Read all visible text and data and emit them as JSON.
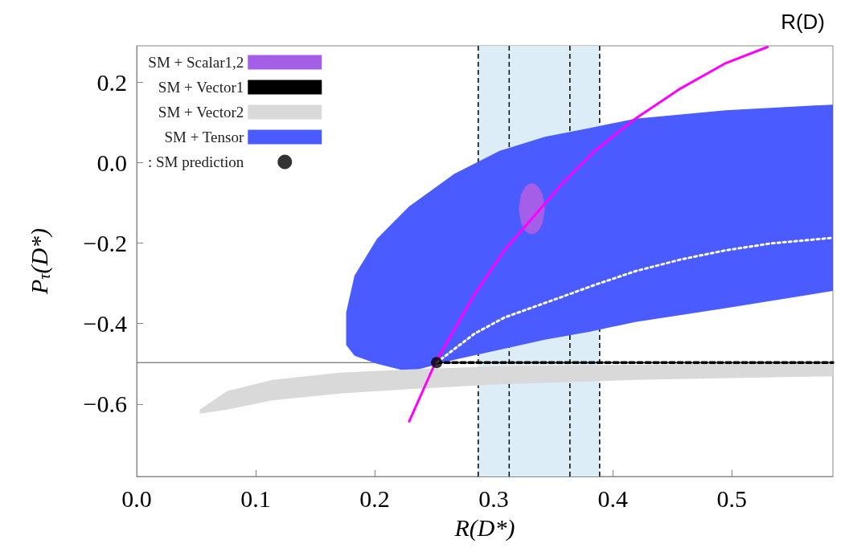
{
  "chart_data": {
    "type": "line",
    "xlabel": "R(D*)",
    "ylabel": "P$_{τ}$(D*)",
    "annotations": [
      "R(D)"
    ],
    "xlim": [
      0,
      0.585
    ],
    "ylim": [
      -0.78,
      0.29
    ],
    "xticks": [
      {
        "value": 0,
        "label": "0.0"
      },
      0.1,
      0.2,
      0.3,
      0.4,
      0.5
    ],
    "yticks": [
      {
        "value": -0.6,
        "label": "−0.6"
      },
      {
        "value": -0.4,
        "label": "−0.4"
      },
      {
        "value": -0.2,
        "label": "−0.2"
      },
      {
        "value": 0,
        "label": "0.0"
      },
      0.2
    ],
    "grid": false,
    "legend": "top left",
    "bands": [
      {
        "axis": "x",
        "from": 0.287,
        "to": 0.389,
        "color": "#dcedf8"
      }
    ],
    "ref_lines": [
      {
        "axis": "y",
        "value": -0.497,
        "color": "#555555",
        "line_style": "solid"
      },
      {
        "axis": "x",
        "value": 0.287,
        "color": "#000000",
        "line_style": "dashed"
      },
      {
        "axis": "x",
        "value": 0.313,
        "color": "#000000",
        "line_style": "dashed"
      },
      {
        "axis": "x",
        "value": 0.364,
        "color": "#000000",
        "line_style": "dashed"
      },
      {
        "axis": "x",
        "value": 0.389,
        "color": "#000000",
        "line_style": "dashed"
      }
    ],
    "series": [
      {
        "name": "SM + Scalar1,2",
        "color": "#a45ee8",
        "x": [
          0.321,
          0.323,
          0.326,
          0.329,
          0.332,
          0.335,
          0.338,
          0.341,
          0.343
        ],
        "values": [
          null,
          null,
          null,
          null,
          null,
          null,
          null,
          null,
          null
        ],
        "upper": [
          -0.115,
          -0.079,
          -0.062,
          -0.054,
          -0.052,
          -0.054,
          -0.062,
          -0.079,
          -0.115
        ],
        "lower": [
          -0.115,
          -0.151,
          -0.168,
          -0.176,
          -0.178,
          -0.176,
          -0.168,
          -0.151,
          -0.115
        ]
      },
      {
        "name": "SM + Vector1",
        "color": "#000000",
        "line_style": "dashed",
        "x": [
          0.252,
          0.585
        ],
        "values": [
          -0.497,
          -0.497
        ]
      },
      {
        "name": "SM + Vector2",
        "color": "#d9d9d9",
        "x": [
          0.053,
          0.076,
          0.114,
          0.171,
          0.229,
          0.305,
          0.419,
          0.585
        ],
        "values": [
          null,
          null,
          null,
          null,
          null,
          null,
          null,
          null
        ],
        "upper": [
          -0.614,
          -0.568,
          -0.54,
          -0.522,
          -0.514,
          -0.506,
          -0.502,
          -0.497
        ],
        "lower": [
          -0.624,
          -0.614,
          -0.591,
          -0.574,
          -0.563,
          -0.551,
          -0.54,
          -0.531
        ]
      },
      {
        "name": "SM + Tensor",
        "color": "#4a5cff",
        "x": [
          0.176,
          0.183,
          0.202,
          0.229,
          0.267,
          0.305,
          0.343,
          0.381,
          0.419,
          0.495,
          0.585
        ],
        "values": [
          null,
          null,
          null,
          null,
          null,
          null,
          null,
          null,
          null,
          null,
          null
        ],
        "upper": [
          -0.373,
          -0.281,
          -0.189,
          -0.109,
          -0.028,
          0.029,
          0.064,
          0.086,
          0.109,
          0.13,
          0.144
        ],
        "lower": [
          -0.453,
          -0.48,
          -0.5,
          -0.52,
          -0.49,
          -0.465,
          -0.44,
          -0.42,
          -0.396,
          -0.362,
          -0.319
        ]
      },
      {
        "color": "#ff00ff",
        "line_style": "solid",
        "x": [
          0.229,
          0.251,
          0.284,
          0.309,
          0.358,
          0.385,
          0.419,
          0.457,
          0.495,
          0.53
        ],
        "values": [
          -0.643,
          -0.497,
          -0.327,
          -0.218,
          -0.051,
          0.029,
          0.109,
          0.184,
          0.247,
          0.287
        ]
      },
      {
        "color": "#ffffff",
        "line_style": "dotted",
        "x": [
          0.252,
          0.284,
          0.309,
          0.358,
          0.385,
          0.419,
          0.457,
          0.495,
          0.533,
          0.585
        ],
        "values": [
          -0.497,
          -0.425,
          -0.385,
          -0.333,
          -0.304,
          -0.27,
          -0.241,
          -0.218,
          -0.201,
          -0.187
        ]
      },
      {
        "name": ": SM prediction",
        "type": "scatter",
        "color": "#000000",
        "marker": "circle",
        "x": [
          0.252
        ],
        "values": [
          -0.497
        ]
      }
    ]
  }
}
